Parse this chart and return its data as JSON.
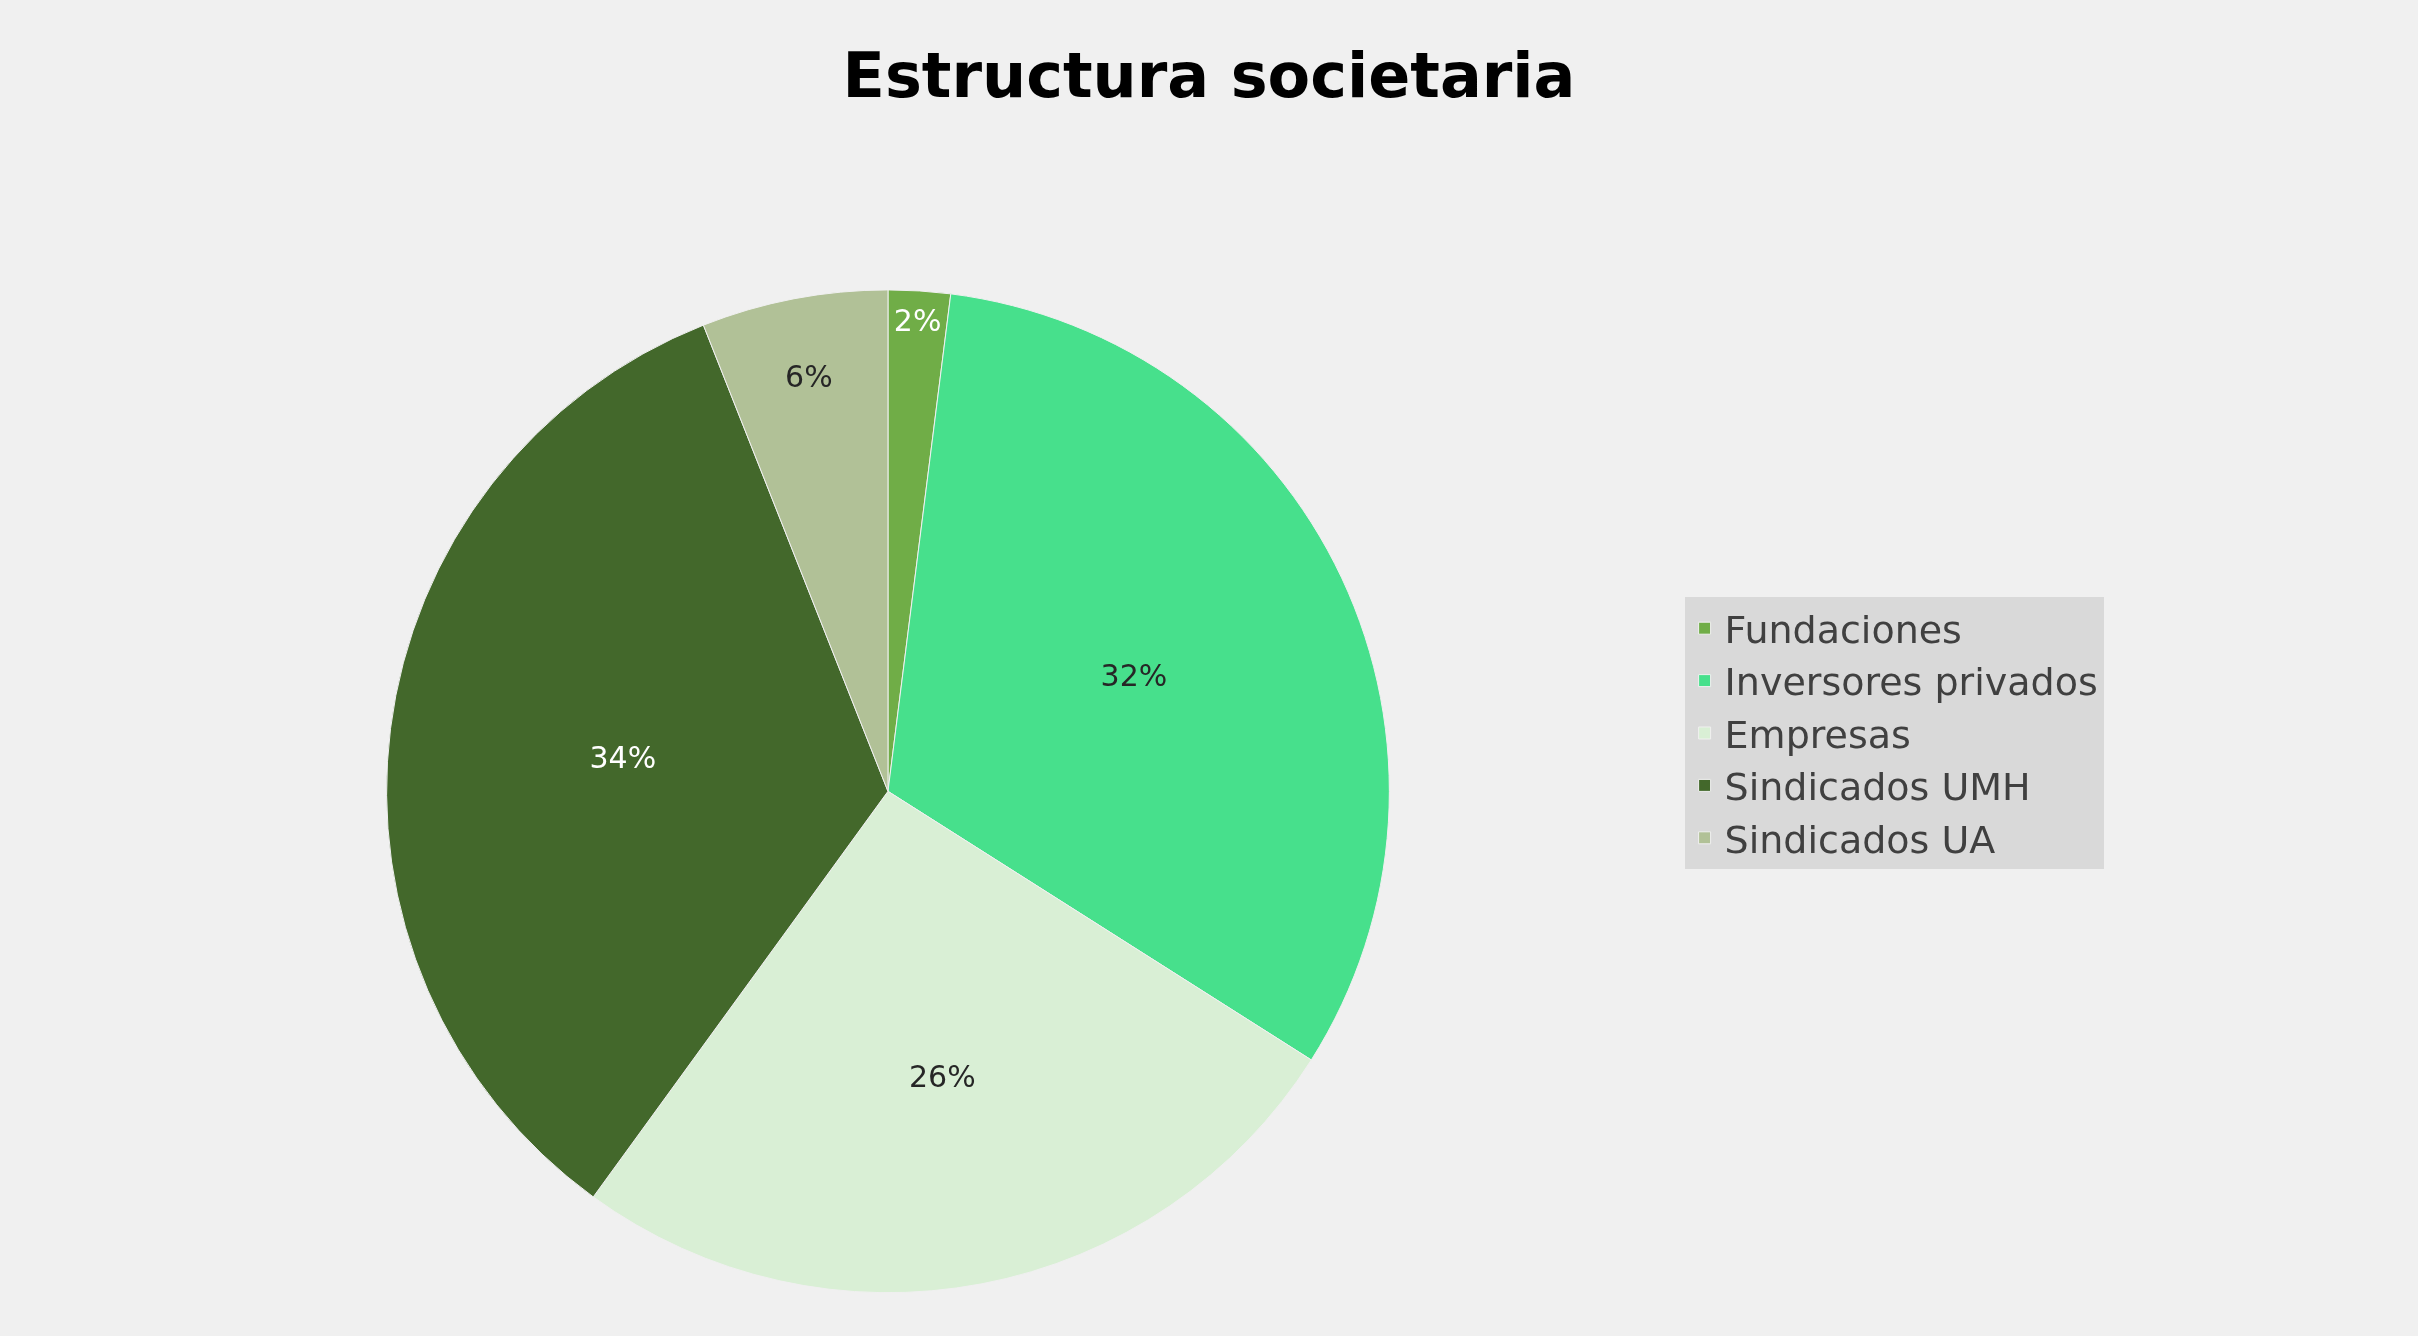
{
  "chart_data": {
    "type": "pie",
    "title": "Estructura societaria",
    "categories": [
      "Fundaciones",
      "Inversores privados",
      "Empresas",
      "Sindicados UMH",
      "Sindicados UA"
    ],
    "values": [
      2,
      32,
      26,
      34,
      6
    ],
    "value_labels": [
      "2%",
      "32%",
      "26%",
      "34%",
      "6%"
    ],
    "colors": [
      "#70ad47",
      "#47e08c",
      "#d9efd5",
      "#43682b",
      "#b1c197"
    ],
    "legend": "right"
  }
}
